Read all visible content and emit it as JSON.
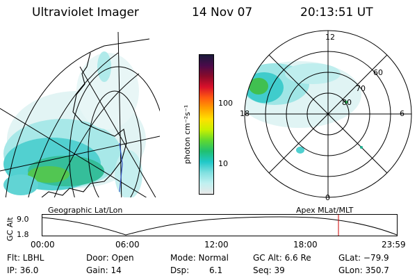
{
  "header": {
    "instrument": "Ultraviolet Imager",
    "date": "14 Nov 07",
    "time": "20:13:51 UT"
  },
  "colorbar": {
    "unit_label": "photon cm⁻²s⁻¹",
    "ticks": [
      "100",
      "10"
    ],
    "scale": "log",
    "colors": [
      "#1a1a3a",
      "#4a0a4a",
      "#8a0a2a",
      "#d8102a",
      "#ff5a10",
      "#ffa000",
      "#ffe000",
      "#c8f000",
      "#60d830",
      "#20c070",
      "#20c8c8",
      "#80e0e0",
      "#c0f0f0",
      "#e8e8e8"
    ]
  },
  "left_panel": {
    "caption": "Geographic Lat/Lon"
  },
  "right_panel": {
    "caption": "Apex MLat/MLT",
    "mlt_labels": {
      "top": "12",
      "right": "6",
      "bottom": "0",
      "left": "18"
    },
    "mlat_labels": [
      "60",
      "70",
      "80"
    ]
  },
  "altitude_plot": {
    "ylabel": "GC Alt",
    "y_ticks": [
      "9.0",
      "1.8"
    ],
    "x_ticks": [
      "00:00",
      "06:00",
      "12:00",
      "18:00",
      "23:59"
    ],
    "current_time_marker_color": "#cc0000"
  },
  "info": {
    "filter": "Flt: LBHL",
    "ip": "IP: 36.0",
    "door": "Door: Open",
    "gain": "Gain: 14",
    "mode": "Mode: Normal",
    "dsp_label": "Dsp:",
    "dsp_value": "6.1",
    "gc_alt": "GC Alt: 6.6 Re",
    "seq": "Seq: 39",
    "glat": "GLat: −79.9",
    "glon": "GLon: 350.7"
  }
}
